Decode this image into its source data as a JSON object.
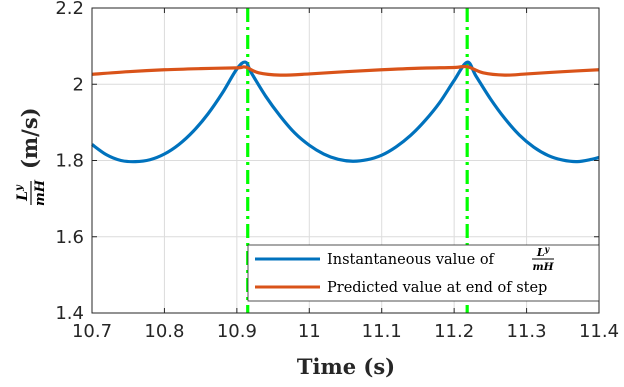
{
  "chart_data": {
    "type": "line",
    "title": "",
    "xlabel": "Time (s)",
    "ylabel": {
      "numerator": "L",
      "numerator_sup": "y",
      "denominator": "mH",
      "unit": "(m/s)"
    },
    "xlim": [
      10.7,
      11.4
    ],
    "ylim": [
      1.4,
      2.2
    ],
    "xticks": [
      "10.7",
      "10.8",
      "10.9",
      "11",
      "11.1",
      "11.2",
      "11.3",
      "11.4"
    ],
    "xtick_values": [
      10.7,
      10.8,
      10.9,
      11.0,
      11.1,
      11.2,
      11.3,
      11.4
    ],
    "yticks": [
      "1.4",
      "1.6",
      "1.8",
      "2",
      "2.2"
    ],
    "ytick_values": [
      1.4,
      1.6,
      1.8,
      2.0,
      2.2
    ],
    "grid": true,
    "legend_position": "bottom-right",
    "series": [
      {
        "name": "Instantaneous value of",
        "name_math": {
          "numerator": "L",
          "sup": "y",
          "denominator": "mH"
        },
        "color": "#0072BD",
        "x": [
          10.7,
          10.72,
          10.74,
          10.76,
          10.78,
          10.8,
          10.82,
          10.84,
          10.86,
          10.88,
          10.9,
          10.912,
          10.92,
          10.94,
          10.96,
          10.98,
          11.0,
          11.02,
          11.04,
          11.06,
          11.08,
          11.1,
          11.12,
          11.14,
          11.16,
          11.18,
          11.2,
          11.218,
          11.23,
          11.25,
          11.27,
          11.29,
          11.31,
          11.33,
          11.35,
          11.37,
          11.39,
          11.4
        ],
        "y": [
          1.842,
          1.815,
          1.8,
          1.797,
          1.802,
          1.817,
          1.842,
          1.877,
          1.922,
          1.977,
          2.04,
          2.058,
          2.03,
          1.968,
          1.916,
          1.872,
          1.84,
          1.817,
          1.803,
          1.798,
          1.802,
          1.814,
          1.836,
          1.866,
          1.905,
          1.952,
          2.01,
          2.058,
          2.022,
          1.962,
          1.91,
          1.867,
          1.835,
          1.813,
          1.801,
          1.797,
          1.803,
          1.808
        ]
      },
      {
        "name": "Predicted value at end of step",
        "color": "#D95319",
        "x": [
          10.7,
          10.75,
          10.8,
          10.85,
          10.9,
          10.912,
          10.93,
          10.96,
          11.0,
          11.05,
          11.1,
          11.15,
          11.2,
          11.218,
          11.24,
          11.27,
          11.3,
          11.35,
          11.4
        ],
        "y": [
          2.026,
          2.033,
          2.038,
          2.041,
          2.043,
          2.045,
          2.03,
          2.024,
          2.027,
          2.033,
          2.038,
          2.042,
          2.044,
          2.046,
          2.03,
          2.024,
          2.027,
          2.033,
          2.038
        ]
      }
    ],
    "vertical_lines": [
      {
        "x": 10.915,
        "color": "#00FF00",
        "style": "dash-dot"
      },
      {
        "x": 11.218,
        "color": "#00FF00",
        "style": "dash-dot"
      }
    ]
  }
}
